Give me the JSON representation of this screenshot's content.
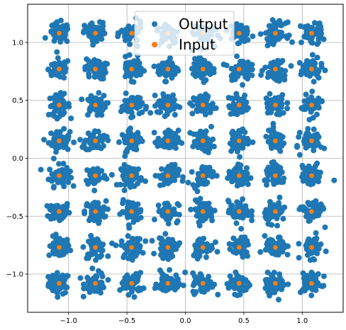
{
  "chart_data": {
    "type": "scatter",
    "title": "",
    "xlabel": "",
    "ylabel": "",
    "xlim": [
      -1.35,
      1.35
    ],
    "ylim": [
      -1.33,
      1.33
    ],
    "grid": true,
    "legend_placement": "top-center",
    "x_ticks": [
      -1.0,
      -0.5,
      0.0,
      0.5,
      1.0
    ],
    "x_tick_labels": [
      "−1.0",
      "−0.5",
      "0.0",
      "0.5",
      "1.0"
    ],
    "y_ticks": [
      1.0,
      0.5,
      0.0,
      -0.5,
      -1.0
    ],
    "y_tick_labels": [
      "1.0",
      "0.5",
      "0.0",
      "−0.5",
      "−1.0"
    ],
    "constellation_levels": [
      -1.08,
      -0.77,
      -0.46,
      -0.15,
      0.15,
      0.46,
      0.77,
      1.08
    ],
    "noise_std": 0.045,
    "points_per_symbol": 55,
    "series": [
      {
        "name": "Output",
        "color": "#1f77b4",
        "description_kind": "noisy constellation clusters around each symbol"
      },
      {
        "name": "Input",
        "color": "#ff7f0e",
        "description_kind": "8x8 QAM symbol grid"
      }
    ]
  }
}
